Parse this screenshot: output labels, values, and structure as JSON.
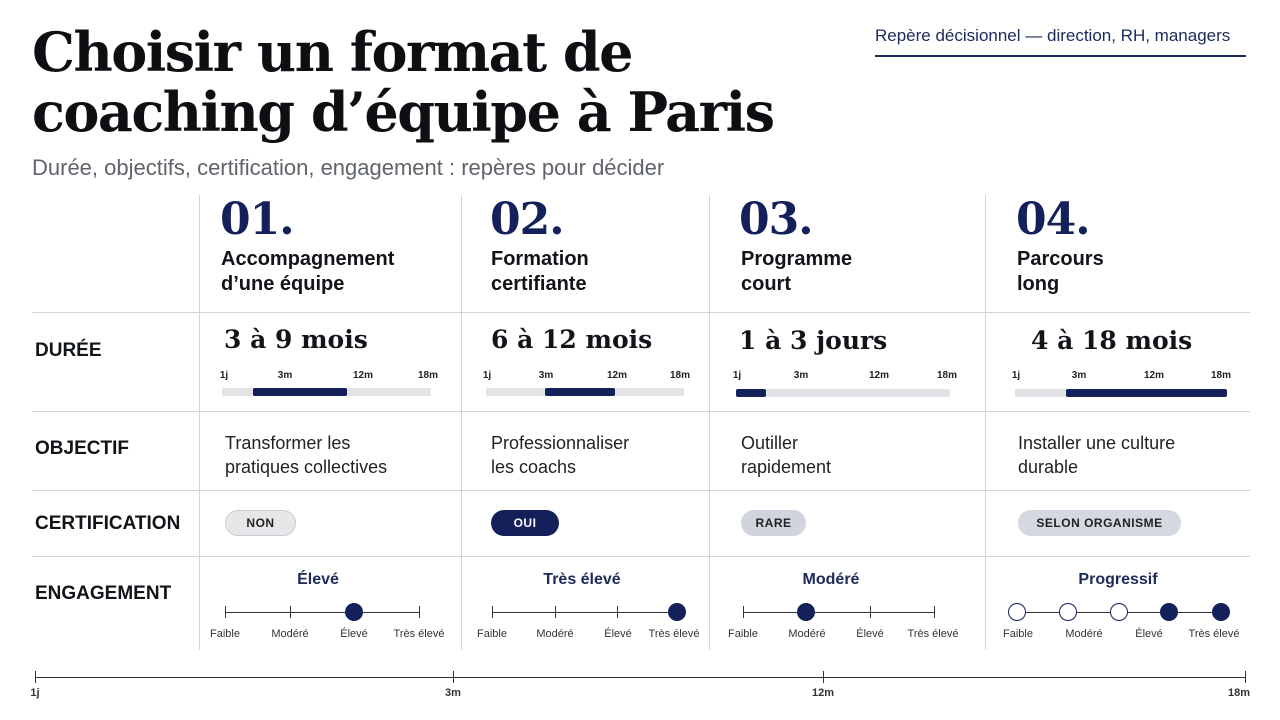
{
  "header": {
    "title": "Choisir un format de coaching d’équipe à Paris",
    "subtitle": "Durée, objectifs, certification, engagement : repères pour décider",
    "tag": "Repère décisionnel — direction, RH, managers"
  },
  "row_labels": {
    "duree": "DURÉE",
    "objectif": "OBJECTIF",
    "certification": "CERTIFICATION",
    "engagement": "ENGAGEMENT"
  },
  "duration_ticks": [
    "1j",
    "3m",
    "12m",
    "18m"
  ],
  "engagement_scale": [
    "Faible",
    "Modéré",
    "Élevé",
    "Très élevé"
  ],
  "formats": [
    {
      "num": "01.",
      "name_line1": "Accompagnement",
      "name_line2": "d’une équipe",
      "duration": "3 à 9 mois",
      "bar_range": [
        0.15,
        0.6
      ],
      "objective_line1": "Transformer les",
      "objective_line2": "pratiques collectives",
      "certification": "NON",
      "engagement": "Élevé",
      "engagement_level": 3,
      "engagement_style": "single"
    },
    {
      "num": "02.",
      "name_line1": "Formation",
      "name_line2": "certifiante",
      "duration": "6 à 12 mois",
      "bar_range": [
        0.3,
        0.65
      ],
      "objective_line1": "Professionnaliser",
      "objective_line2": "les coachs",
      "certification": "OUI",
      "engagement": "Très élevé",
      "engagement_level": 4,
      "engagement_style": "single"
    },
    {
      "num": "03.",
      "name_line1": "Programme",
      "name_line2": "court",
      "duration": "1 à 3 jours",
      "bar_range": [
        0.0,
        0.14
      ],
      "objective_line1": "Outiller",
      "objective_line2": "rapidement",
      "certification": "RARE",
      "engagement": "Modéré",
      "engagement_level": 2,
      "engagement_style": "single"
    },
    {
      "num": "04.",
      "name_line1": "Parcours",
      "name_line2": "long",
      "duration": "4 à 18 mois",
      "bar_range": [
        0.24,
        1.0
      ],
      "objective_line1": "Installer une culture",
      "objective_line2": "durable",
      "certification": "SELON ORGANISME",
      "engagement": "Progressif",
      "engagement_level": 4,
      "engagement_style": "progressive"
    }
  ],
  "bottom_axis": [
    "1j",
    "3m",
    "12m",
    "18m"
  ],
  "colors": {
    "navy": "#13205a",
    "pill_non": "#e6e7e9",
    "pill_oui": "#13205a",
    "pill_rare": "#cfd4dd",
    "pill_selon": "#d4d8e0"
  }
}
